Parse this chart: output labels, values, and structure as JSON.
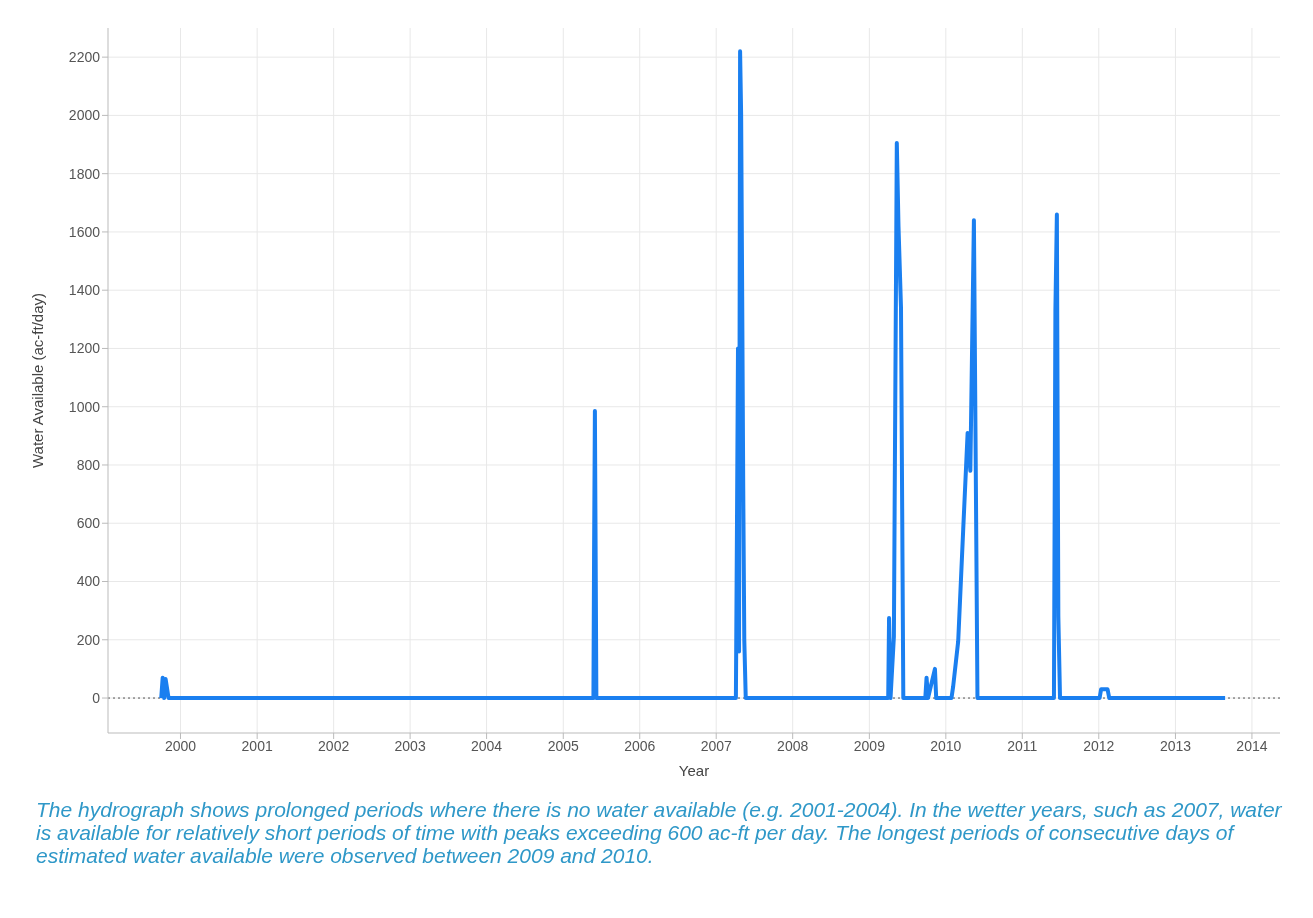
{
  "chart_data": {
    "type": "line",
    "xlabel": "Year",
    "ylabel": "Water Available (ac-ft/day)",
    "annotations": [
      "The hydrograph shows prolonged periods where there is no water available (e.g. 2001-2004). In the wetter years, such as 2007, water is available for relatively short periods of time with peaks exceeding 600 ac-ft per day.  The longest periods of consecutive days of estimated water available were observed between 2009 and 2010."
    ],
    "x": [
      "1999-10-01",
      "1999-10-08",
      "1999-10-15",
      "1999-10-22",
      "1999-11-05",
      "2005-05-25",
      "2005-05-28",
      "2005-06-01",
      "2005-06-08",
      "2007-04-05",
      "2007-04-10",
      "2007-04-15",
      "2007-04-20",
      "2007-04-25",
      "2007-04-30",
      "2007-05-05",
      "2007-05-10",
      "2007-05-15",
      "2007-05-22",
      "2009-04-01",
      "2009-04-05",
      "2009-04-12",
      "2009-04-28",
      "2009-05-12",
      "2009-05-20",
      "2009-06-01",
      "2009-06-12",
      "2009-09-25",
      "2009-10-01",
      "2009-10-08",
      "2009-11-10",
      "2009-11-16",
      "2010-01-28",
      "2010-02-05",
      "2010-03-01",
      "2010-03-25",
      "2010-04-15",
      "2010-04-28",
      "2010-05-15",
      "2010-06-01",
      "2011-06-01",
      "2011-06-08",
      "2011-06-15",
      "2011-06-22",
      "2011-06-30",
      "2012-01-05",
      "2012-01-12",
      "2012-02-12",
      "2012-02-20",
      "2013-08-26"
    ],
    "series": [
      {
        "color": "#1a7ff0",
        "values": [
          0,
          70,
          0,
          65,
          0,
          0,
          490,
          985,
          0,
          0,
          580,
          1200,
          160,
          2220,
          2000,
          1380,
          720,
          200,
          0,
          0,
          275,
          0,
          210,
          1905,
          1620,
          1340,
          0,
          0,
          70,
          0,
          100,
          0,
          0,
          40,
          195,
          580,
          910,
          780,
          1640,
          0,
          0,
          1330,
          1660,
          280,
          0,
          0,
          30,
          30,
          0,
          0
        ]
      }
    ],
    "xlim": [
      "1999-01-20",
      "2014-05-15"
    ],
    "xticks": [
      "2000",
      "2001",
      "2002",
      "2003",
      "2004",
      "2005",
      "2006",
      "2007",
      "2008",
      "2009",
      "2010",
      "2011",
      "2012",
      "2013",
      "2014"
    ],
    "ylim": [
      -120,
      2300
    ],
    "yticks": [
      0,
      200,
      400,
      600,
      800,
      1000,
      1200,
      1400,
      1600,
      1800,
      2000,
      2200
    ],
    "grid": true,
    "marker": "none",
    "line_style": "solid",
    "legend": false,
    "ref_lines": [
      {
        "axis": "y",
        "value": 0,
        "color": "#555555",
        "line_style": "dotted"
      }
    ]
  }
}
